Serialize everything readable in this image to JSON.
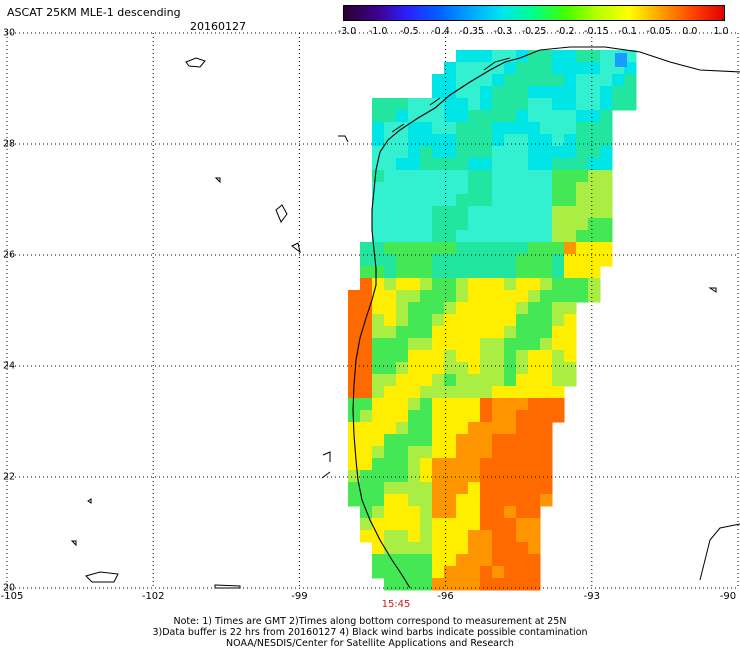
{
  "header": {
    "title": "ASCAT 25KM MLE-1 descending",
    "date": "20160127"
  },
  "colorbar": {
    "labels": [
      "-3.0",
      "-1.0",
      "-0.5",
      "-0.4",
      "-0.35",
      "-0.3",
      "-0.25",
      "-0.2",
      "-0.15",
      "-0.1",
      "-0.05",
      "0.0",
      "1.0"
    ],
    "colors": [
      "#2a0030",
      "#3d0088",
      "#2b20ff",
      "#0060ff",
      "#00a6ff",
      "#00e5ee",
      "#00ff88",
      "#44ff00",
      "#b6ff00",
      "#ffff00",
      "#ffa000",
      "#ff4400",
      "#e00000"
    ]
  },
  "axes": {
    "lat_labels": [
      "30",
      "28",
      "26",
      "24",
      "22",
      "20"
    ],
    "lon_labels": [
      "-105",
      "-102",
      "-99",
      "-96",
      "-93",
      "-90"
    ],
    "lon_range": [
      -105,
      -90
    ],
    "lat_range": [
      20,
      30
    ],
    "grid": "dotted"
  },
  "time_label": "15:45",
  "notes": {
    "line1": "Note: 1) Times are GMT 2)Times along bottom correspond to measurement at 25N",
    "line2": "3)Data buffer is 22 hrs from 20160127 4) Black wind barbs indicate possible contamination",
    "line3": "NOAA/NESDIS/Center for Satellite Applications and Research"
  },
  "field": {
    "swath_colors": {
      "cyan": "#00e6e6",
      "light_cyan": "#33f0d0",
      "teal_green": "#22e6a0",
      "green": "#44e855",
      "yellow_green": "#aaee44",
      "yellow": "#ffee00",
      "orange": "#ff9500",
      "red_orange": "#ff6a00"
    }
  }
}
